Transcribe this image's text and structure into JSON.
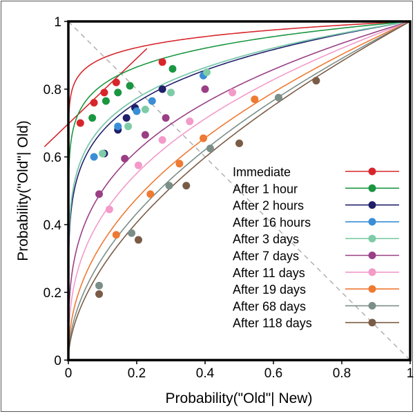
{
  "chart_data": {
    "type": "line",
    "title": "",
    "xlabel": "Probability(\"Old\"| New)",
    "ylabel": "Probability(\"Old\"| Old)",
    "xlim": [
      0,
      1
    ],
    "ylim": [
      0,
      1
    ],
    "x_ticks": [
      "0",
      "0.2",
      "0.4",
      "0.6",
      "0.8",
      "1"
    ],
    "y_ticks": [
      "0",
      "0.2",
      "0.4",
      "0.6",
      "0.8",
      "1"
    ],
    "chance_line": {
      "style": "dashed",
      "color": "#b0b0b0",
      "from": [
        0,
        1
      ],
      "to": [
        1,
        0
      ]
    },
    "legend_position": "lower-right",
    "series": [
      {
        "name": "Immediate",
        "color": "#d7262b",
        "curve_power": 0.05,
        "points": [
          [
            0.035,
            0.7
          ],
          [
            0.075,
            0.76
          ],
          [
            0.105,
            0.79
          ],
          [
            0.14,
            0.82
          ],
          [
            0.275,
            0.88
          ]
        ],
        "extra_line": [
          [
            -0.07,
            0.63
          ],
          [
            0.23,
            0.92
          ]
        ]
      },
      {
        "name": "After 1 hour",
        "color": "#1a9641",
        "curve_power": 0.09,
        "points": [
          [
            0.07,
            0.715
          ],
          [
            0.11,
            0.765
          ],
          [
            0.145,
            0.79
          ],
          [
            0.18,
            0.81
          ],
          [
            0.305,
            0.86
          ]
        ]
      },
      {
        "name": "After 2 hours",
        "color": "#1f1f6b",
        "curve_power": 0.17,
        "points": [
          [
            0.105,
            0.61
          ],
          [
            0.145,
            0.68
          ],
          [
            0.17,
            0.715
          ],
          [
            0.195,
            0.745
          ],
          [
            0.275,
            0.8
          ]
        ]
      },
      {
        "name": "After 16 hours",
        "color": "#3a8ed6",
        "curve_power": 0.16,
        "points": [
          [
            0.075,
            0.6
          ],
          [
            0.145,
            0.69
          ],
          [
            0.2,
            0.735
          ],
          [
            0.245,
            0.765
          ],
          [
            0.395,
            0.84
          ]
        ]
      },
      {
        "name": "After 3 days",
        "color": "#7ecca7",
        "curve_power": 0.16,
        "points": [
          [
            0.1,
            0.61
          ],
          [
            0.175,
            0.69
          ],
          [
            0.225,
            0.74
          ],
          [
            0.3,
            0.79
          ],
          [
            0.405,
            0.85
          ]
        ]
      },
      {
        "name": "After 7 days",
        "color": "#9a3f86",
        "curve_power": 0.3,
        "points": [
          [
            0.09,
            0.49
          ],
          [
            0.165,
            0.595
          ],
          [
            0.225,
            0.665
          ],
          [
            0.285,
            0.715
          ],
          [
            0.4,
            0.8
          ]
        ]
      },
      {
        "name": "After 11 days",
        "color": "#f39ac9",
        "curve_power": 0.37,
        "points": [
          [
            0.12,
            0.445
          ],
          [
            0.205,
            0.575
          ],
          [
            0.275,
            0.65
          ],
          [
            0.355,
            0.705
          ],
          [
            0.48,
            0.79
          ]
        ]
      },
      {
        "name": "After 19 days",
        "color": "#ee7a33",
        "curve_power": 0.46,
        "points": [
          [
            0.14,
            0.37
          ],
          [
            0.24,
            0.49
          ],
          [
            0.325,
            0.58
          ],
          [
            0.395,
            0.655
          ],
          [
            0.545,
            0.77
          ]
        ]
      },
      {
        "name": "After 68 days",
        "color": "#7b8e88",
        "curve_power": 0.52,
        "points": [
          [
            0.09,
            0.22
          ],
          [
            0.185,
            0.375
          ],
          [
            0.295,
            0.515
          ],
          [
            0.415,
            0.625
          ],
          [
            0.615,
            0.775
          ]
        ]
      },
      {
        "name": "After 118 days",
        "color": "#7a5c46",
        "curve_power": 0.56,
        "points": [
          [
            0.09,
            0.195
          ],
          [
            0.205,
            0.355
          ],
          [
            0.345,
            0.515
          ],
          [
            0.5,
            0.64
          ],
          [
            0.725,
            0.825
          ]
        ]
      }
    ]
  }
}
